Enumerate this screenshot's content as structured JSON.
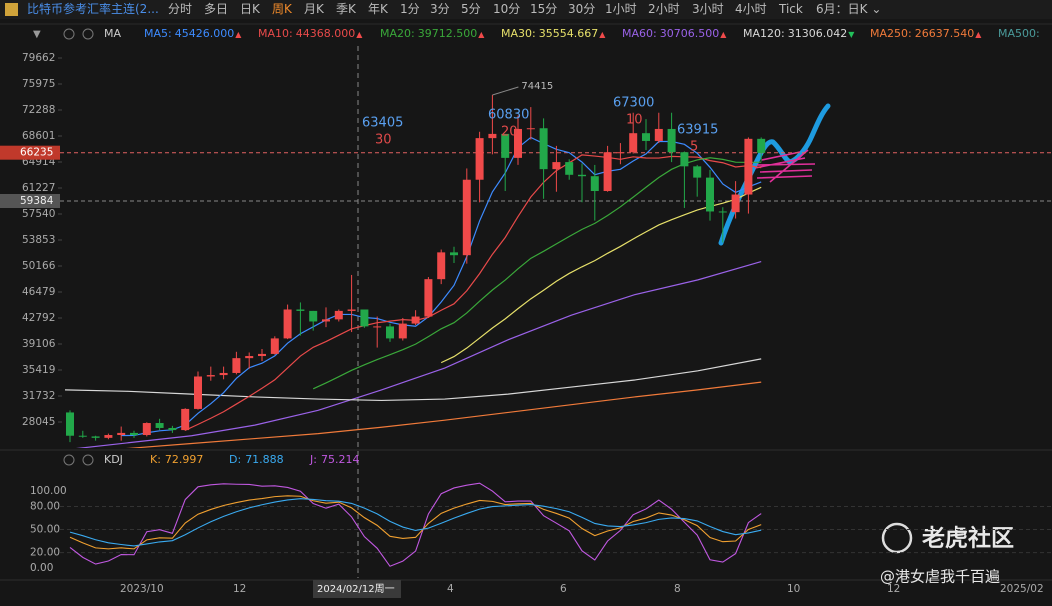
{
  "toolbar": {
    "title": "比特币参考汇率主连(2...",
    "tabs": [
      "分时",
      "多日",
      "日K",
      "周K",
      "月K",
      "季K",
      "年K",
      "1分",
      "3分",
      "5分",
      "10分",
      "15分",
      "30分",
      "1小时",
      "2小时",
      "3小时",
      "4小时",
      "Tick",
      "6月：日K ⌄"
    ],
    "active_tab": 3
  },
  "ma_legend": {
    "label": "MA",
    "items": [
      {
        "name": "MA5:",
        "value": "45426.000",
        "trend": "▲",
        "color": "#3d8bff"
      },
      {
        "name": "MA10:",
        "value": "44368.000",
        "trend": "▲",
        "color": "#e84a4a"
      },
      {
        "name": "MA20:",
        "value": "39712.500",
        "trend": "▲",
        "color": "#3aa83a"
      },
      {
        "name": "MA30:",
        "value": "35554.667",
        "trend": "▲",
        "color": "#e6e06a"
      },
      {
        "name": "MA60:",
        "value": "30706.500",
        "trend": "▲",
        "color": "#9a62e8"
      },
      {
        "name": "MA120:",
        "value": "31306.042",
        "trend": "▼",
        "color": "#d8d8d8"
      },
      {
        "name": "MA250:",
        "value": "26637.540",
        "trend": "▲",
        "color": "#f07a3a"
      },
      {
        "name": "MA500:",
        "value": "",
        "trend": "",
        "color": "#4a9a9a"
      }
    ]
  },
  "chart_data": {
    "type": "candlestick",
    "open": [
      29400,
      26100,
      26000,
      25800,
      26200,
      26500,
      26200,
      27900,
      27200,
      26900,
      29900,
      34500,
      34700,
      35000,
      37100,
      37400,
      37700,
      39900,
      44000,
      43800,
      42300,
      42600,
      43800,
      44000,
      41600,
      41600,
      39900,
      42000,
      43000,
      48300,
      52100,
      51700,
      62400,
      68300,
      68900,
      65500,
      69600,
      69700,
      63900,
      64900,
      63100,
      62900,
      60800,
      66300,
      66300,
      69000,
      67900,
      69600,
      66300,
      64300,
      62700,
      57900,
      57800,
      60300,
      68200
    ],
    "high": [
      29700,
      26800,
      26100,
      26400,
      27400,
      26800,
      28000,
      28500,
      27500,
      30000,
      35200,
      35900,
      35900,
      38000,
      37900,
      38400,
      40200,
      44700,
      45000,
      43800,
      44300,
      44000,
      48900,
      44000,
      43000,
      42000,
      42800,
      43900,
      48600,
      52500,
      52900,
      64000,
      69200,
      74415,
      68900,
      71500,
      72700,
      71100,
      67200,
      65300,
      64700,
      64500,
      67200,
      67600,
      71900,
      71000,
      71900,
      71900,
      66400,
      64500,
      63800,
      58500,
      62200,
      68400,
      68400
    ],
    "low": [
      25200,
      25800,
      25400,
      25600,
      25400,
      25800,
      26000,
      26900,
      26500,
      26800,
      29800,
      33900,
      34100,
      34800,
      35600,
      36700,
      37600,
      39800,
      40300,
      41000,
      41500,
      42300,
      40800,
      41400,
      38600,
      39400,
      39600,
      41800,
      42800,
      47600,
      50600,
      50500,
      59200,
      66000,
      60800,
      64500,
      68100,
      59700,
      60700,
      62400,
      59200,
      56600,
      60700,
      64600,
      66100,
      66600,
      67600,
      64900,
      58400,
      60000,
      56600,
      53500,
      56900,
      57600,
      65000
    ],
    "close": [
      26100,
      26000,
      25800,
      26200,
      26500,
      26200,
      27900,
      27200,
      26900,
      29900,
      34500,
      34700,
      35000,
      37100,
      37400,
      37700,
      39900,
      44000,
      43800,
      42300,
      42600,
      43800,
      44000,
      41600,
      41600,
      39900,
      42000,
      43000,
      48300,
      52100,
      51700,
      62400,
      68300,
      68900,
      65500,
      69600,
      69700,
      63900,
      64900,
      63100,
      62900,
      60800,
      66300,
      66300,
      69000,
      67900,
      69600,
      66300,
      64300,
      62700,
      57900,
      57800,
      60300,
      68200,
      66200
    ],
    "up_color": "#f04a4a",
    "down_color": "#22a84a",
    "ylim": [
      24359,
      81080
    ],
    "yticks": [
      79662,
      75975,
      72288,
      68601,
      64914,
      61227,
      57540,
      53853,
      50166,
      46479,
      42792,
      39106,
      35419,
      31732,
      28045
    ],
    "last_price": 66235,
    "cursor_price": 59384,
    "high_mark": 74415,
    "long_ma": [
      {
        "name": "MA60",
        "color": "#9a62e8",
        "values": [
          24100,
          25100,
          26100,
          27600,
          29700,
          32600,
          35700,
          39700,
          43200,
          46100,
          48200,
          50800
        ]
      },
      {
        "name": "MA120",
        "color": "#d8d8d8",
        "values": [
          32600,
          32400,
          32000,
          31600,
          31300,
          31100,
          31300,
          32000,
          33000,
          34000,
          35300,
          37000
        ]
      },
      {
        "name": "MA250",
        "color": "#f07a3a",
        "values": [
          23600,
          24300,
          25000,
          25700,
          26400,
          27300,
          28300,
          29400,
          30500,
          31600,
          32600,
          33700
        ]
      }
    ],
    "annotations": [
      {
        "text": "63405",
        "sub": "30"
      },
      {
        "text": "60830",
        "sub": "20"
      },
      {
        "text": "67300",
        "sub": "10"
      },
      {
        "text": "63915",
        "sub": "5"
      }
    ],
    "xlabels": [
      "2023/10",
      "12",
      "4",
      "6",
      "8",
      "10",
      "12",
      "2025/02"
    ],
    "cursor_date": "2024/02/12周一"
  },
  "kdj": {
    "title": "KDJ",
    "k_label": "K:",
    "k": 72.997,
    "d_label": "D:",
    "d": 71.888,
    "j_label": "J:",
    "j": 75.214,
    "ylim": [
      -13,
      117
    ],
    "yticks": [
      {
        "value": 100,
        "label": "100.00"
      },
      {
        "value": 80,
        "label": "80.00"
      },
      {
        "value": 50,
        "label": "50.00"
      },
      {
        "value": 20,
        "label": "20.00"
      },
      {
        "value": 0,
        "label": "0.00"
      }
    ]
  },
  "watermark": {
    "brand": "老虎社区",
    "user": "@港女虐我千百遍"
  }
}
